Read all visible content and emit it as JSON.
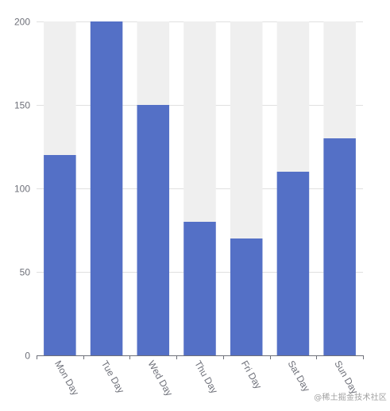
{
  "chart_data": {
    "type": "bar",
    "categories": [
      "Mon Day",
      "Tue Day",
      "Wed Day",
      "Thu Day",
      "Fri Day",
      "Sat Day",
      "Sun Day"
    ],
    "values": [
      120,
      200,
      150,
      80,
      70,
      110,
      130
    ],
    "background_bar_value": 200,
    "ylim": [
      0,
      200
    ],
    "yticks": [
      0,
      50,
      100,
      150,
      200
    ],
    "grid": true,
    "show_background_bars": true,
    "xlabel_rotation_deg": 60,
    "colors": {
      "bar": "#5470c6",
      "background_bar": "#efefef",
      "grid": "#e0e0e0",
      "axis": "#6e7079",
      "tick_label": "#6e7079"
    }
  },
  "watermark": {
    "text": "@稀土掘金技术社区"
  }
}
